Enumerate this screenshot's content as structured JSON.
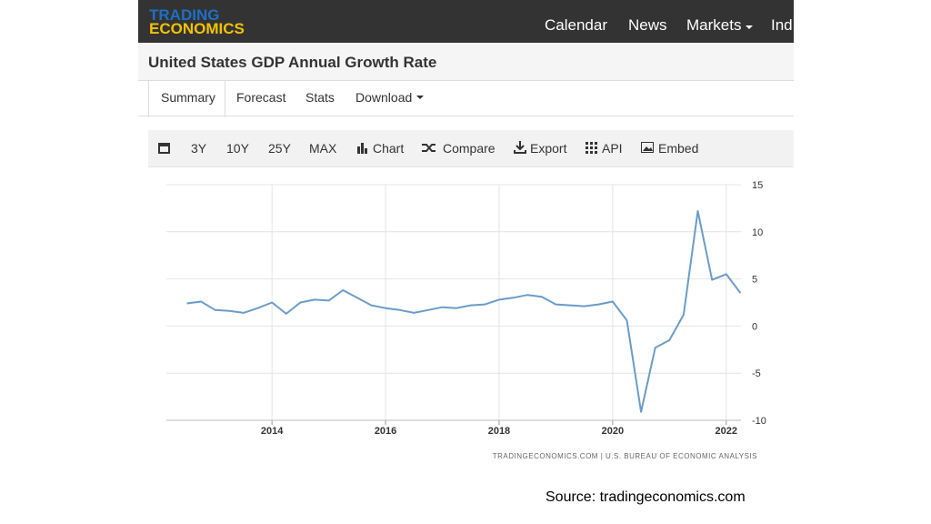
{
  "header": {
    "logo_top": "TRADING",
    "logo_bottom": "ECONOMICS",
    "nav": [
      "Calendar",
      "News",
      "Markets",
      "Ind"
    ]
  },
  "page_title": "United States GDP Annual Growth Rate",
  "tabs": [
    "Summary",
    "Forecast",
    "Stats",
    "Download"
  ],
  "toolbar": [
    "3Y",
    "10Y",
    "25Y",
    "MAX",
    "Chart",
    "Compare",
    "Export",
    "API",
    "Embed"
  ],
  "chart_data": {
    "type": "line",
    "color": "#6a9cc9",
    "grid": true,
    "credit": "TRADINGECONOMICS.COM  |  U.S. BUREAU OF ECONOMIC ANALYSIS",
    "x": [
      2012.5,
      2012.75,
      2013,
      2013.25,
      2013.5,
      2013.75,
      2014,
      2014.25,
      2014.5,
      2014.75,
      2015,
      2015.25,
      2015.5,
      2015.75,
      2016,
      2016.25,
      2016.5,
      2016.75,
      2017,
      2017.25,
      2017.5,
      2017.75,
      2018,
      2018.25,
      2018.5,
      2018.75,
      2019,
      2019.25,
      2019.5,
      2019.75,
      2020,
      2020.25,
      2020.5,
      2020.75,
      2021,
      2021.25,
      2021.5,
      2021.75,
      2022,
      2022.25
    ],
    "values": [
      2.4,
      2.6,
      1.7,
      1.6,
      1.4,
      1.9,
      2.5,
      1.3,
      2.5,
      2.8,
      2.7,
      3.8,
      3.0,
      2.2,
      1.9,
      1.7,
      1.4,
      1.7,
      2.0,
      1.9,
      2.2,
      2.3,
      2.8,
      3.0,
      3.3,
      3.1,
      2.3,
      2.2,
      2.1,
      2.3,
      2.6,
      0.6,
      -9.1,
      -2.3,
      -1.5,
      1.2,
      12.2,
      4.9,
      5.5,
      3.5
    ],
    "xlim": [
      2012.14,
      2022.26
    ],
    "xticks": [
      2014,
      2016,
      2018,
      2020,
      2022
    ],
    "ylim": [
      -10,
      15
    ],
    "yticks": [
      -10,
      -5,
      0,
      5,
      10,
      15
    ]
  },
  "source": "Source: tradingeconomics.com"
}
